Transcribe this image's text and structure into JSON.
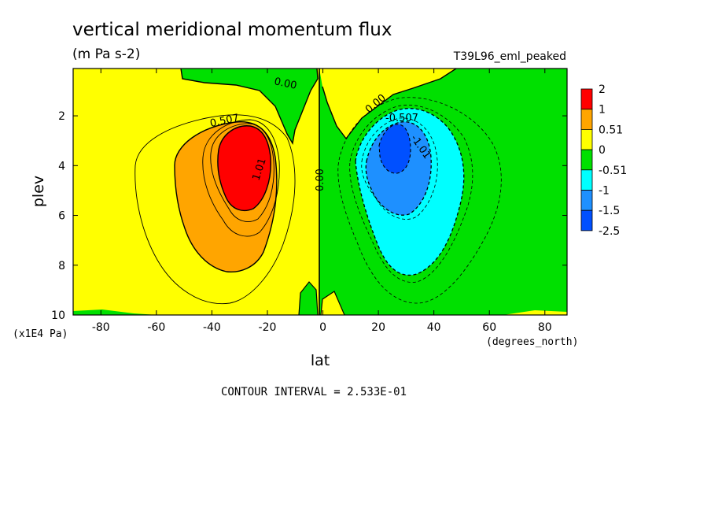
{
  "chart_data": {
    "type": "contour",
    "title": "vertical meridional momentum flux",
    "units": "(m Pa s-2)",
    "dataset": "T39L96_eml_peaked",
    "xlabel": "lat",
    "xunits": "(degrees_north)",
    "ylabel": "plev",
    "yunits": "(x1E4 Pa)",
    "xlim": [
      -90,
      88
    ],
    "ylim": [
      10,
      0.1
    ],
    "x_ticks": [
      -80,
      -60,
      -40,
      -20,
      0,
      20,
      40,
      60,
      80
    ],
    "y_ticks": [
      2,
      4,
      6,
      8,
      10
    ],
    "contour_interval_text": "CONTOUR INTERVAL = 2.533E-01",
    "contour_labels": [
      "0.00",
      "0.507",
      "1.01",
      "0.00",
      "0.00",
      "-0.507",
      "-1.01"
    ],
    "legend": {
      "labels": [
        "2",
        "1",
        "0.51",
        "0",
        "-0.51",
        "-1",
        "-1.5",
        "-2.5"
      ],
      "colors": [
        "#ff0000",
        "#ffa500",
        "#ffff00",
        "#00e000",
        "#00ffff",
        "#1e90ff",
        "#0050ff"
      ]
    },
    "features": [
      {
        "name": "positive maximum",
        "lat": -28,
        "plev": 3.5,
        "value": 2
      },
      {
        "name": "negative minimum",
        "lat": 27,
        "plev": 3.5,
        "value": -2.5
      }
    ]
  }
}
